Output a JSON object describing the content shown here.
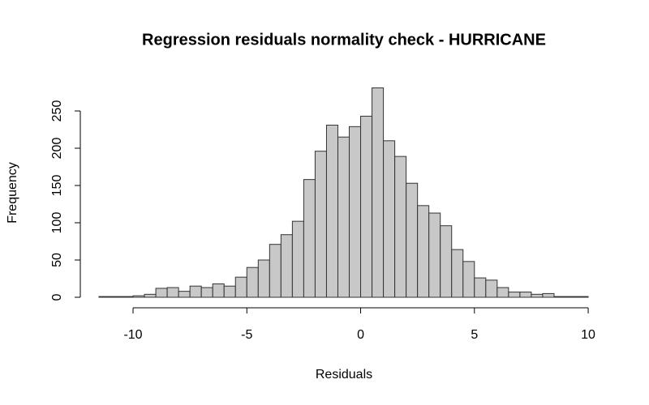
{
  "chart_data": {
    "type": "histogram",
    "title": "Regression residuals normality check - HURRICANE",
    "xlabel": "Residuals",
    "ylabel": "Frequency",
    "bins": [
      -11.5,
      -11,
      -10.5,
      -10,
      -9.5,
      -9,
      -8.5,
      -8,
      -7.5,
      -7,
      -6.5,
      -6,
      -5.5,
      -5,
      -4.5,
      -4,
      -3.5,
      -3,
      -2.5,
      -2,
      -1.5,
      -1,
      -0.5,
      0,
      0.5,
      1,
      1.5,
      2,
      2.5,
      3,
      3.5,
      4,
      4.5,
      5,
      5.5,
      6,
      6.5,
      7,
      7.5,
      8,
      8.5,
      9,
      9.5,
      10
    ],
    "values": [
      1,
      1,
      1,
      2,
      4,
      12,
      13,
      8,
      15,
      13,
      18,
      15,
      27,
      40,
      50,
      71,
      84,
      102,
      158,
      196,
      231,
      215,
      229,
      243,
      281,
      210,
      189,
      153,
      123,
      113,
      96,
      64,
      48,
      26,
      23,
      13,
      7,
      7,
      4,
      5,
      1,
      1,
      1
    ],
    "color": "#c8c8c8",
    "xlim": [
      -12.4,
      10.9
    ],
    "xticks": [
      -10,
      -5,
      0,
      5,
      10
    ],
    "ylim": [
      0,
      290
    ],
    "yticks": [
      0,
      50,
      100,
      150,
      200,
      250
    ]
  }
}
